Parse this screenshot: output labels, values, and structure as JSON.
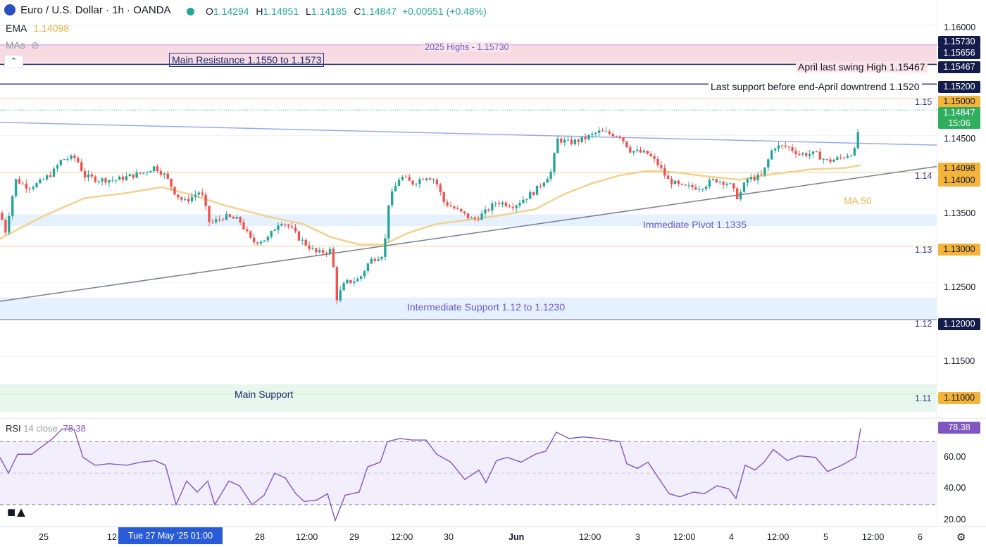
{
  "header": {
    "symbol": "Euro / U.S. Dollar · 1h · OANDA",
    "open_label": "O",
    "open": "1.14294",
    "high_label": "H",
    "high": "1.14951",
    "low_label": "L",
    "low": "1.14185",
    "close_label": "C",
    "close": "1.14847",
    "change": "+0.00551 (+0.48%)",
    "ema_label": "EMA",
    "ema_value": "1.14098",
    "mas_label": "MAs",
    "rsi_label": "RSI",
    "rsi_params": "14 close",
    "rsi_value": "78.38"
  },
  "colors": {
    "up": "#26a69a",
    "down": "#ef5350",
    "ema": "#f2d28c",
    "rsi": "#7e57c2",
    "resistance_zone": "#f8d7e0",
    "support_zone": "#e0efff",
    "main_support_zone": "#e3f6ea"
  },
  "annotations": {
    "highs_2025": "2025 Highs - 1.15730",
    "main_resistance": "Main Resistance 1.1550 to 1.1573",
    "april_swing": "April last swing High 1.15467",
    "last_support": "Last support before end-April downtrend 1.1520",
    "ma50": "MA 50",
    "immediate_pivot": "Immediate Pivot 1.1335",
    "intermediate_support": "Intermediate Support 1.12 to 1.1230",
    "main_support": "Main Support",
    "lvl_115": "1.15",
    "lvl_114": "1.14",
    "lvl_113": "1.13",
    "lvl_112": "1.12",
    "lvl_111": "1.11"
  },
  "price_tags": {
    "p15730": "1.15730",
    "p15656": "1.15656",
    "p15467": "1.15467",
    "p15200": "1.15200",
    "p15000": "1.15000",
    "last": "1.14847",
    "countdown": "15:06",
    "p14098": "1.14098",
    "p14000": "1.14000",
    "p13000": "1.13000",
    "p12000": "1.12000",
    "p11000": "1.11000",
    "rsi": "78.38"
  },
  "price_axis": [
    "1.16000",
    "1.14500",
    "1.13500",
    "1.12500",
    "1.11500"
  ],
  "rsi_axis": [
    "60.00",
    "40.00",
    "20.00"
  ],
  "time_axis": [
    "25",
    "12",
    "28",
    "12:00",
    "29",
    "12:00",
    "30",
    "Jun",
    "12:00",
    "3",
    "12:00",
    "4",
    "12:00",
    "5",
    "12:00",
    "6"
  ],
  "crosshair_time": "Tue 27 May '25   01:00",
  "chart_data": {
    "type": "candlestick",
    "ylim": [
      1.107,
      1.1615
    ],
    "rsi_ylim": [
      17,
      84
    ],
    "levels": [
      1.1573,
      1.15656,
      1.15467,
      1.152,
      1.15,
      1.14,
      1.13,
      1.12,
      1.11
    ],
    "zones": [
      {
        "name": "Main Resistance",
        "from": 1.155,
        "to": 1.1573
      },
      {
        "name": "Immediate Pivot",
        "from": 1.1327,
        "to": 1.1343
      },
      {
        "name": "Intermediate Support",
        "from": 1.12,
        "to": 1.123
      },
      {
        "name": "Main Support",
        "from": 1.1075,
        "to": 1.1112
      }
    ],
    "close_path": [
      [
        0,
        1.1345
      ],
      [
        8,
        1.132
      ],
      [
        22,
        1.139
      ],
      [
        40,
        1.138
      ],
      [
        55,
        1.1385
      ],
      [
        75,
        1.14
      ],
      [
        88,
        1.1418
      ],
      [
        108,
        1.142
      ],
      [
        120,
        1.1395
      ],
      [
        140,
        1.139
      ],
      [
        165,
        1.139
      ],
      [
        185,
        1.1395
      ],
      [
        205,
        1.14
      ],
      [
        220,
        1.1408
      ],
      [
        235,
        1.1395
      ],
      [
        250,
        1.137
      ],
      [
        262,
        1.136
      ],
      [
        285,
        1.1375
      ],
      [
        298,
        1.133
      ],
      [
        318,
        1.134
      ],
      [
        340,
        1.1335
      ],
      [
        358,
        1.1305
      ],
      [
        380,
        1.131
      ],
      [
        398,
        1.1335
      ],
      [
        412,
        1.1325
      ],
      [
        425,
        1.131
      ],
      [
        450,
        1.129
      ],
      [
        472,
        1.1295
      ],
      [
        476,
        1.1225
      ],
      [
        490,
        1.125
      ],
      [
        510,
        1.1255
      ],
      [
        525,
        1.128
      ],
      [
        545,
        1.129
      ],
      [
        552,
        1.136
      ],
      [
        568,
        1.1395
      ],
      [
        585,
        1.1385
      ],
      [
        605,
        1.1395
      ],
      [
        618,
        1.139
      ],
      [
        630,
        1.136
      ],
      [
        655,
        1.1345
      ],
      [
        672,
        1.1335
      ],
      [
        688,
        1.1345
      ],
      [
        705,
        1.136
      ],
      [
        730,
        1.1355
      ],
      [
        760,
        1.1375
      ],
      [
        782,
        1.14
      ],
      [
        792,
        1.1445
      ],
      [
        808,
        1.144
      ],
      [
        828,
        1.1445
      ],
      [
        850,
        1.1455
      ],
      [
        870,
        1.1452
      ],
      [
        880,
        1.145
      ],
      [
        895,
        1.143
      ],
      [
        920,
        1.1425
      ],
      [
        935,
        1.141
      ],
      [
        948,
        1.139
      ],
      [
        968,
        1.138
      ],
      [
        995,
        1.138
      ],
      [
        1015,
        1.139
      ],
      [
        1035,
        1.1385
      ],
      [
        1048,
        1.1365
      ],
      [
        1060,
        1.139
      ],
      [
        1082,
        1.1395
      ],
      [
        1098,
        1.1435
      ],
      [
        1118,
        1.1435
      ],
      [
        1135,
        1.1425
      ],
      [
        1158,
        1.1425
      ],
      [
        1175,
        1.1415
      ],
      [
        1195,
        1.142
      ],
      [
        1215,
        1.143
      ],
      [
        1222,
        1.14847
      ]
    ],
    "ema50_path": [
      [
        0,
        1.131
      ],
      [
        60,
        1.134
      ],
      [
        120,
        1.1365
      ],
      [
        180,
        1.1372
      ],
      [
        230,
        1.138
      ],
      [
        270,
        1.137
      ],
      [
        320,
        1.1355
      ],
      [
        380,
        1.134
      ],
      [
        430,
        1.133
      ],
      [
        470,
        1.1312
      ],
      [
        510,
        1.1302
      ],
      [
        545,
        1.1302
      ],
      [
        580,
        1.1318
      ],
      [
        620,
        1.133
      ],
      [
        660,
        1.1335
      ],
      [
        700,
        1.134
      ],
      [
        760,
        1.135
      ],
      [
        800,
        1.137
      ],
      [
        840,
        1.1385
      ],
      [
        880,
        1.1396
      ],
      [
        920,
        1.1402
      ],
      [
        960,
        1.14
      ],
      [
        1000,
        1.1395
      ],
      [
        1050,
        1.139
      ],
      [
        1100,
        1.1398
      ],
      [
        1150,
        1.1404
      ],
      [
        1200,
        1.1406
      ],
      [
        1222,
        1.14098
      ]
    ],
    "upper_trendline": [
      [
        0,
        1.1468
      ],
      [
        1330,
        1.1437
      ]
    ],
    "lower_trendline": [
      [
        0,
        1.1225
      ],
      [
        1330,
        1.1408
      ]
    ],
    "rsi_path": [
      [
        0,
        60
      ],
      [
        12,
        50
      ],
      [
        25,
        62
      ],
      [
        45,
        62
      ],
      [
        60,
        67
      ],
      [
        75,
        72
      ],
      [
        88,
        78
      ],
      [
        105,
        78
      ],
      [
        118,
        60
      ],
      [
        135,
        55
      ],
      [
        155,
        56
      ],
      [
        180,
        55
      ],
      [
        200,
        57
      ],
      [
        220,
        58
      ],
      [
        235,
        55
      ],
      [
        250,
        30
      ],
      [
        265,
        45
      ],
      [
        280,
        38
      ],
      [
        295,
        45
      ],
      [
        305,
        30
      ],
      [
        325,
        45
      ],
      [
        340,
        42
      ],
      [
        358,
        30
      ],
      [
        375,
        36
      ],
      [
        390,
        50
      ],
      [
        405,
        47
      ],
      [
        420,
        37
      ],
      [
        432,
        32
      ],
      [
        450,
        33
      ],
      [
        465,
        37
      ],
      [
        476,
        20
      ],
      [
        490,
        36
      ],
      [
        510,
        38
      ],
      [
        522,
        54
      ],
      [
        540,
        57
      ],
      [
        550,
        70
      ],
      [
        568,
        72
      ],
      [
        585,
        71
      ],
      [
        605,
        71
      ],
      [
        620,
        62
      ],
      [
        640,
        57
      ],
      [
        660,
        46
      ],
      [
        680,
        52
      ],
      [
        690,
        44
      ],
      [
        705,
        58
      ],
      [
        720,
        60
      ],
      [
        740,
        57
      ],
      [
        760,
        62
      ],
      [
        775,
        64
      ],
      [
        790,
        76
      ],
      [
        808,
        72
      ],
      [
        828,
        73
      ],
      [
        850,
        72
      ],
      [
        880,
        70
      ],
      [
        890,
        56
      ],
      [
        905,
        53
      ],
      [
        920,
        57
      ],
      [
        935,
        47
      ],
      [
        950,
        37
      ],
      [
        965,
        35
      ],
      [
        985,
        38
      ],
      [
        1000,
        37
      ],
      [
        1018,
        42
      ],
      [
        1035,
        40
      ],
      [
        1045,
        34
      ],
      [
        1058,
        55
      ],
      [
        1072,
        52
      ],
      [
        1085,
        57
      ],
      [
        1098,
        65
      ],
      [
        1118,
        58
      ],
      [
        1135,
        61
      ],
      [
        1158,
        60
      ],
      [
        1175,
        51
      ],
      [
        1195,
        55
      ],
      [
        1215,
        60
      ],
      [
        1222,
        78.38
      ]
    ]
  }
}
